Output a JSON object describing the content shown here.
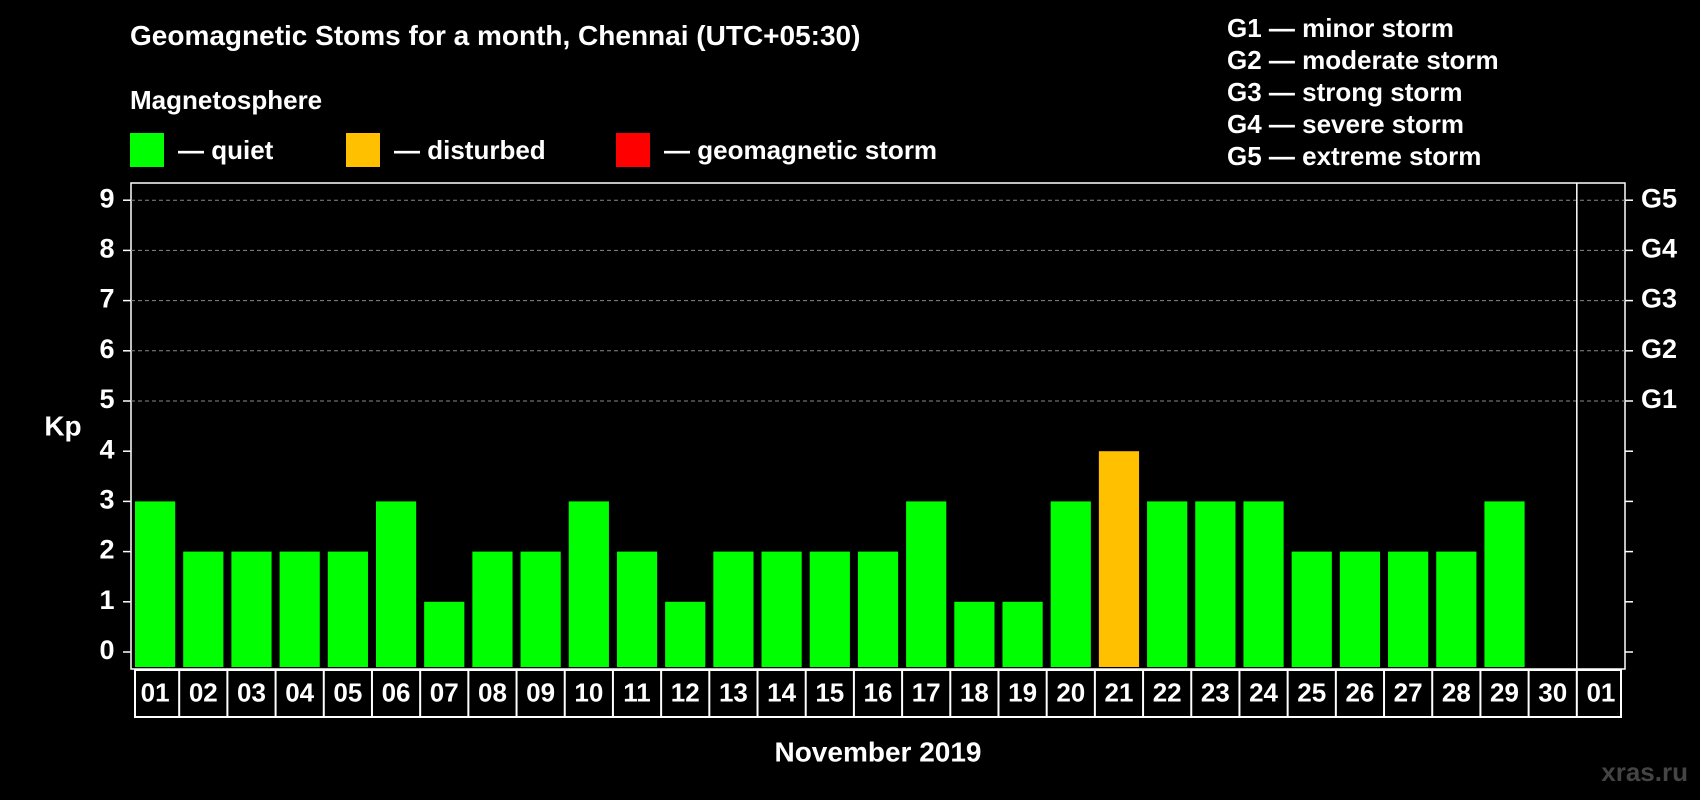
{
  "title": "Geomagnetic Stoms for a month, Chennai (UTC+05:30)",
  "magnetosphere": {
    "heading": "Magnetosphere",
    "items": [
      {
        "label": "— quiet",
        "color": "#00ff00"
      },
      {
        "label": "— disturbed",
        "color": "#ffc000"
      },
      {
        "label": "— geomagnetic storm",
        "color": "#ff0000"
      }
    ]
  },
  "storm_scale": [
    "G1 — minor storm",
    "G2 — moderate storm",
    "G3 — strong storm",
    "G4 — severe storm",
    "G5 — extreme storm"
  ],
  "watermark": "xras.ru",
  "chart_data": {
    "type": "bar",
    "title": "Geomagnetic Stoms for a month, Chennai (UTC+05:30)",
    "xlabel": "November 2019",
    "ylabel": "Kp",
    "ylim": [
      0,
      9
    ],
    "yticks": [
      "0",
      "1",
      "2",
      "3",
      "4",
      "5",
      "6",
      "7",
      "8",
      "9"
    ],
    "right_ticks": [
      {
        "kp": 5,
        "label": "G1"
      },
      {
        "kp": 6,
        "label": "G2"
      },
      {
        "kp": 7,
        "label": "G3"
      },
      {
        "kp": 8,
        "label": "G4"
      },
      {
        "kp": 9,
        "label": "G5"
      }
    ],
    "dashed_gridlines_at": [
      5,
      6,
      7,
      8,
      9
    ],
    "categories": [
      "01",
      "02",
      "03",
      "04",
      "05",
      "06",
      "07",
      "08",
      "09",
      "10",
      "11",
      "12",
      "13",
      "14",
      "15",
      "16",
      "17",
      "18",
      "19",
      "20",
      "21",
      "22",
      "23",
      "24",
      "25",
      "26",
      "27",
      "28",
      "29",
      "30",
      "01"
    ],
    "values": [
      3,
      2,
      2,
      2,
      2,
      3,
      1,
      2,
      2,
      3,
      2,
      1,
      2,
      2,
      2,
      2,
      3,
      1,
      1,
      3,
      4,
      3,
      3,
      3,
      2,
      2,
      2,
      2,
      3,
      null,
      null
    ],
    "bar_colors": [
      "#00ff00",
      "#00ff00",
      "#00ff00",
      "#00ff00",
      "#00ff00",
      "#00ff00",
      "#00ff00",
      "#00ff00",
      "#00ff00",
      "#00ff00",
      "#00ff00",
      "#00ff00",
      "#00ff00",
      "#00ff00",
      "#00ff00",
      "#00ff00",
      "#00ff00",
      "#00ff00",
      "#00ff00",
      "#00ff00",
      "#ffc000",
      "#00ff00",
      "#00ff00",
      "#00ff00",
      "#00ff00",
      "#00ff00",
      "#00ff00",
      "#00ff00",
      "#00ff00",
      null,
      null
    ],
    "month_end_divider_after_index": 29
  }
}
